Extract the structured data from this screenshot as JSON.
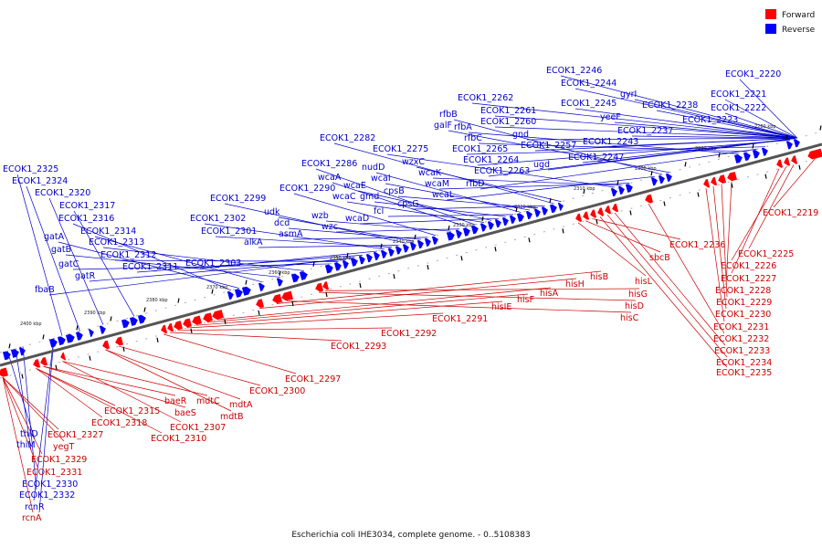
{
  "title": "Escherichia coli IHE3034, complete genome. - 0..5108383",
  "legend": [
    {
      "label": "Forward",
      "color": "#ff0000"
    },
    {
      "label": "Reverse",
      "color": "#0000ff"
    }
  ],
  "colors": {
    "forward_label": "#cc0000",
    "reverse_label": "#0000cc",
    "axis": "#555555",
    "strand": "#aaaaaa"
  },
  "scale_ticks": [
    "2400 kbp",
    "2390 kbp",
    "2380 kbp",
    "2370 kbp",
    "2360 kbp",
    "2350 kbp",
    "2340 kbp",
    "2330 kbp",
    "2320 kbp",
    "2310 kbp",
    "2300 kbp",
    "2290 kbp",
    "2280 kbp"
  ],
  "reverse_labels": [
    "ECOK1_2325",
    "ECOK1_2324",
    "ECOK1_2320",
    "ECOK1_2317",
    "ECOK1_2316",
    "gatA",
    "ECOK1_2314",
    "gatB",
    "ECOK1_2313",
    "gatC",
    "ECOK1_2312",
    "gatR",
    "fbaB",
    "ECOK1_2311",
    "ECOK1_2303",
    "ECOK1_2302",
    "ECOK1_2301",
    "alkA",
    "ECOK1_2299",
    "udk",
    "dcd",
    "asmA",
    "ECOK1_2290",
    "wzb",
    "wzc",
    "wcaA",
    "ECOK1_2286",
    "wcaC",
    "wcaE",
    "wcaD",
    "gmd",
    "fcl",
    "nudD",
    "wcaI",
    "cpsB",
    "cpsG",
    "ECOK1_2282",
    "wzxC",
    "ECOK1_2275",
    "wcaK",
    "wcaM",
    "wcaL",
    "rfbB",
    "galF",
    "rfbA",
    "rfbC",
    "rfbD",
    "ECOK1_2265",
    "ECOK1_2264",
    "ECOK1_2263",
    "ECOK1_2262",
    "ECOK1_2261",
    "ECOK1_2260",
    "gnd",
    "ugd",
    "ECOK1_2257",
    "ECOK1_2246",
    "ECOK1_2244",
    "ECOK1_2245",
    "yeeF",
    "ECOK1_2243",
    "ECOK1_2247",
    "gyrI",
    "ECOK1_2237",
    "ECOK1_2238",
    "ECOK1_2220",
    "ECOK1_2221",
    "ECOK1_2222",
    "ECOK1_2223",
    "thiD",
    "thiM",
    "ECOK1_2330",
    "ECOK1_2332",
    "rcnR"
  ],
  "forward_labels": [
    "ECOK1_2219",
    "ECOK1_2225",
    "ECOK1_2226",
    "ECOK1_2227",
    "ECOK1_2228",
    "ECOK1_2229",
    "ECOK1_2230",
    "ECOK1_2231",
    "ECOK1_2232",
    "ECOK1_2233",
    "ECOK1_2234",
    "ECOK1_2235",
    "ECOK1_2236",
    "sbcB",
    "hisL",
    "hisG",
    "hisD",
    "hisC",
    "hisB",
    "hisH",
    "hisA",
    "hisF",
    "hisIE",
    "ECOK1_2291",
    "ECOK1_2292",
    "ECOK1_2293",
    "ECOK1_2297",
    "ECOK1_2300",
    "mdtA",
    "mdtB",
    "mdtC",
    "ECOK1_2307",
    "baeR",
    "baeS",
    "ECOK1_2310",
    "ECOK1_2315",
    "ECOK1_2318",
    "ECOK1_2327",
    "yegT",
    "ECOK1_2329",
    "ECOK1_2331",
    "rcnA"
  ]
}
